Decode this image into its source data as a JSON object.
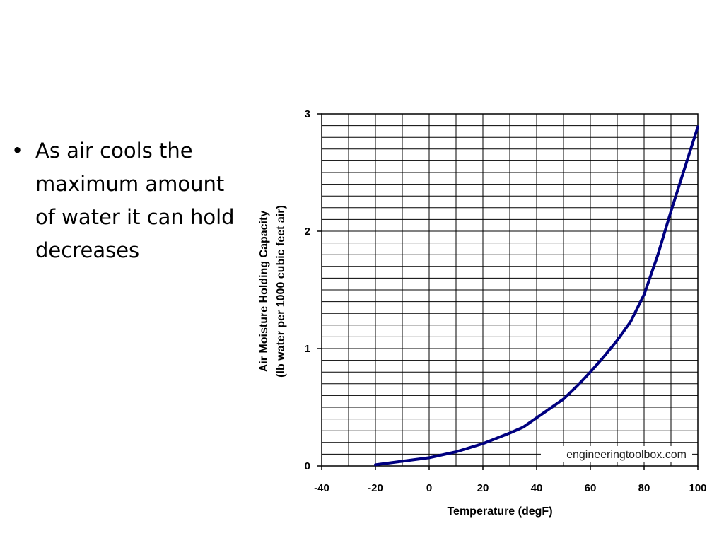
{
  "slide": {
    "bullets": [
      "As air cools the maximum amount of water it can hold decreases"
    ]
  },
  "chart_data": {
    "type": "line",
    "title": "",
    "xlabel": "Temperature (degF)",
    "ylabel_lines": [
      "Air Moisture Holding Capacity",
      "(lb water per 1000 cubic feet air)"
    ],
    "xlim": [
      -40,
      100
    ],
    "ylim": [
      0,
      3
    ],
    "x_ticks": [
      -40,
      -20,
      0,
      20,
      40,
      60,
      80,
      100
    ],
    "y_ticks": [
      0,
      1,
      2,
      3
    ],
    "grid": true,
    "watermark": "engineeringtoolbox.com",
    "series": [
      {
        "color": "#000080",
        "x": [
          -20,
          -10,
          0,
          10,
          20,
          30,
          35,
          40,
          45,
          50,
          55,
          60,
          65,
          70,
          75,
          80,
          85,
          90,
          95,
          100
        ],
        "y": [
          0.01,
          0.04,
          0.07,
          0.12,
          0.19,
          0.28,
          0.33,
          0.41,
          0.49,
          0.57,
          0.68,
          0.8,
          0.93,
          1.07,
          1.23,
          1.46,
          1.79,
          2.17,
          2.53,
          2.89
        ]
      }
    ]
  }
}
